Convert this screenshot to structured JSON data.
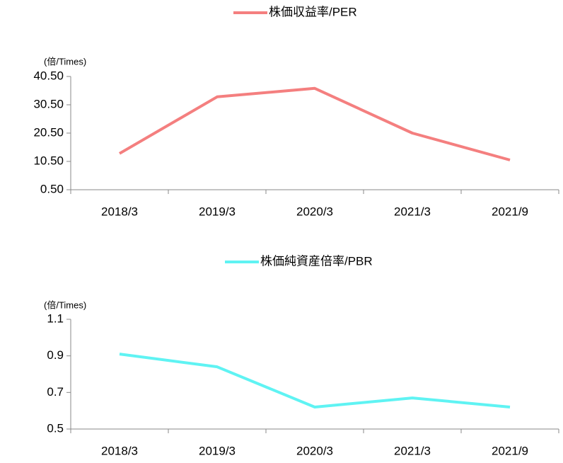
{
  "chart_data": [
    {
      "type": "line",
      "y_label": "(倍/Times)",
      "categories": [
        "2018/3",
        "2019/3",
        "2020/3",
        "2021/3",
        "2021/9"
      ],
      "series": [
        {
          "name": "株価収益率/PER",
          "color": "#f47f7f",
          "values": [
            13.3,
            33.3,
            36.3,
            20.5,
            11.0
          ]
        }
      ],
      "ylim": [
        0.5,
        40.5
      ],
      "yticks": [
        {
          "value": 0.5,
          "label": "0.50"
        },
        {
          "value": 10.5,
          "label": "10.50"
        },
        {
          "value": 20.5,
          "label": "20.50"
        },
        {
          "value": 30.5,
          "label": "30.50"
        },
        {
          "value": 40.5,
          "label": "40.50"
        }
      ],
      "grid": false
    },
    {
      "type": "line",
      "y_label": "(倍/Times)",
      "categories": [
        "2018/3",
        "2019/3",
        "2020/3",
        "2021/3",
        "2021/9"
      ],
      "series": [
        {
          "name": "株価純資産倍率/PBR",
          "color": "#5ff3f3",
          "values": [
            0.91,
            0.84,
            0.62,
            0.67,
            0.62
          ]
        }
      ],
      "ylim": [
        0.5,
        1.1
      ],
      "yticks": [
        0.5,
        0.7,
        0.9,
        1.1
      ],
      "grid": false
    }
  ]
}
